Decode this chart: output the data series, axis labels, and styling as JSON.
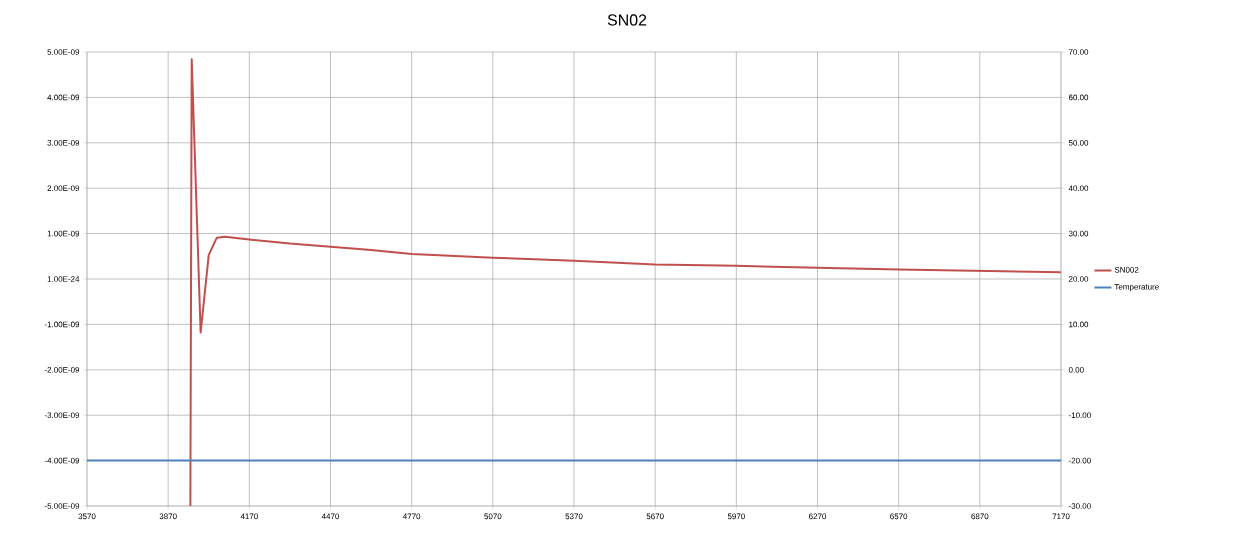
{
  "chart_data": {
    "type": "line",
    "title": "SN02",
    "xlim": [
      3570,
      7170
    ],
    "xticks": [
      3570,
      3870,
      4170,
      4470,
      4770,
      5070,
      5370,
      5670,
      5970,
      6270,
      6570,
      6870,
      7170
    ],
    "ylim": [
      -5e-09,
      5e-09
    ],
    "yticks": [
      {
        "value": -5e-09,
        "label": "-5.00E-09"
      },
      {
        "value": -4e-09,
        "label": "-4.00E-09"
      },
      {
        "value": -3e-09,
        "label": "-3.00E-09"
      },
      {
        "value": -2e-09,
        "label": "-2.00E-09"
      },
      {
        "value": -1e-09,
        "label": "-1.00E-09"
      },
      {
        "value": 0,
        "label": "1.00E-24"
      },
      {
        "value": 1e-09,
        "label": "1.00E-09"
      },
      {
        "value": 2e-09,
        "label": "2.00E-09"
      },
      {
        "value": 3e-09,
        "label": "3.00E-09"
      },
      {
        "value": 4e-09,
        "label": "4.00E-09"
      },
      {
        "value": 5e-09,
        "label": "5.00E-09"
      }
    ],
    "y2lim": [
      -30,
      70
    ],
    "y2ticks": [
      {
        "value": -30,
        "label": "-30.00"
      },
      {
        "value": -20,
        "label": "-20.00"
      },
      {
        "value": -10,
        "label": "-10.00"
      },
      {
        "value": 0,
        "label": "0.00"
      },
      {
        "value": 10,
        "label": "10.00"
      },
      {
        "value": 20,
        "label": "20.00"
      },
      {
        "value": 30,
        "label": "30.00"
      },
      {
        "value": 40,
        "label": "40.00"
      },
      {
        "value": 50,
        "label": "50.00"
      },
      {
        "value": 60,
        "label": "60.00"
      },
      {
        "value": 70,
        "label": "70.00"
      }
    ],
    "grid": true,
    "legend": "right",
    "marker": "none",
    "line_style": "solid",
    "series": [
      {
        "name": "SN002",
        "color": "#c0504d",
        "x": [
          3952,
          3957,
          3990,
          4020,
          4050,
          4080,
          4170,
          4320,
          4470,
          4620,
          4770,
          5070,
          5370,
          5670,
          5970,
          6270,
          6570,
          6870,
          7170
        ],
        "values": [
          -5e-09,
          4.84e-09,
          -1.18e-09,
          5.3e-10,
          9.1e-10,
          9.3e-10,
          8.7e-10,
          7.8e-10,
          7.1e-10,
          6.4e-10,
          5.5e-10,
          4.7e-10,
          4e-10,
          3.2e-10,
          2.9e-10,
          2.5e-10,
          2.1e-10,
          1.8e-10,
          1.5e-10
        ]
      },
      {
        "name": "Temperature",
        "color": "#4f81bd",
        "axis": "y2",
        "x": [
          3570,
          7170
        ],
        "values": [
          -20,
          -20
        ]
      }
    ]
  }
}
